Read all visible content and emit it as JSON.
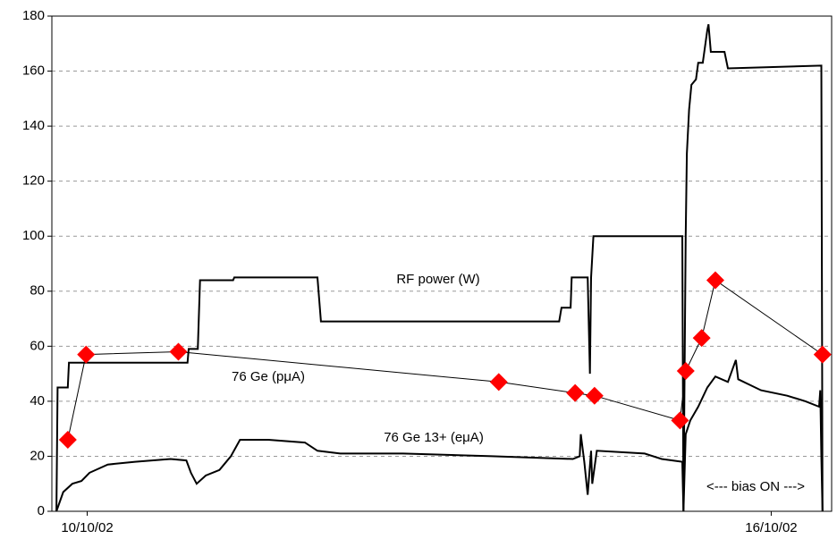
{
  "chart_data": {
    "type": "line",
    "annotations": [
      "<---  bias ON --->"
    ],
    "series": [
      {
        "name": "RF power (W)",
        "color": "#000000",
        "marker": "none",
        "x": [
          -0.27,
          -0.26,
          -0.17,
          -0.16,
          0.88,
          0.89,
          0.97,
          0.99,
          1.28,
          1.29,
          2.02,
          2.05,
          4.14,
          4.16,
          4.24,
          4.25,
          4.39,
          4.41,
          4.42,
          4.44,
          5.22,
          5.23,
          5.25,
          5.26,
          5.28,
          5.3,
          5.34,
          5.36,
          5.4,
          5.44,
          5.45,
          5.47,
          5.59,
          5.62,
          6.44,
          6.45
        ],
        "values": [
          0,
          45,
          45,
          54,
          54,
          59,
          59,
          84,
          84,
          85,
          85,
          69,
          69,
          74,
          74,
          85,
          85,
          50,
          85,
          100,
          100,
          0,
          100,
          130,
          146,
          155,
          157,
          163,
          163,
          175,
          177,
          167,
          167,
          161,
          162,
          0
        ]
      },
      {
        "name": "76 Ge  (pμA)",
        "color": "#000000",
        "marker": "diamond",
        "marker_color": "#ff0000",
        "x": [
          -0.17,
          -0.01,
          0.8,
          3.61,
          4.28,
          4.45,
          5.2,
          5.25,
          5.39,
          5.51,
          6.45
        ],
        "values": [
          26,
          57,
          58,
          47,
          43,
          42,
          33,
          51,
          63,
          84,
          57
        ]
      },
      {
        "name": "76 Ge 13+ (eμA)",
        "color": "#000000",
        "marker": "none",
        "x": [
          -0.27,
          -0.21,
          -0.13,
          -0.05,
          0.02,
          0.18,
          0.42,
          0.73,
          0.87,
          0.91,
          0.96,
          1.04,
          1.16,
          1.26,
          1.34,
          1.59,
          1.91,
          2.02,
          2.22,
          2.77,
          3.55,
          4.26,
          4.32,
          4.33,
          4.36,
          4.39,
          4.42,
          4.43,
          4.47,
          4.89,
          5.04,
          5.22,
          5.23,
          5.25,
          5.29,
          5.36,
          5.44,
          5.51,
          5.62,
          5.69,
          5.71,
          5.91,
          6.14,
          6.3,
          6.42,
          6.43,
          6.44,
          6.45
        ],
        "values": [
          0,
          7,
          10,
          11,
          14,
          17,
          18,
          19,
          18.5,
          14,
          10,
          13,
          15,
          20,
          26,
          26,
          25,
          22,
          21,
          21,
          20,
          19,
          20,
          28,
          18,
          6,
          22,
          10,
          22,
          21,
          19,
          18,
          0,
          28,
          33,
          38,
          45,
          49,
          47,
          55,
          48,
          44,
          42,
          40,
          38,
          44,
          20,
          0
        ]
      }
    ],
    "xlim": [
      -0.31,
      6.53
    ],
    "xticks": [
      {
        "value": 0,
        "label": "10/10/02"
      },
      {
        "value": 6,
        "label": "16/10/02"
      }
    ],
    "ylim": [
      0,
      180
    ],
    "yticks": [
      0,
      20,
      40,
      60,
      80,
      100,
      120,
      140,
      160,
      180
    ],
    "grid": true
  }
}
